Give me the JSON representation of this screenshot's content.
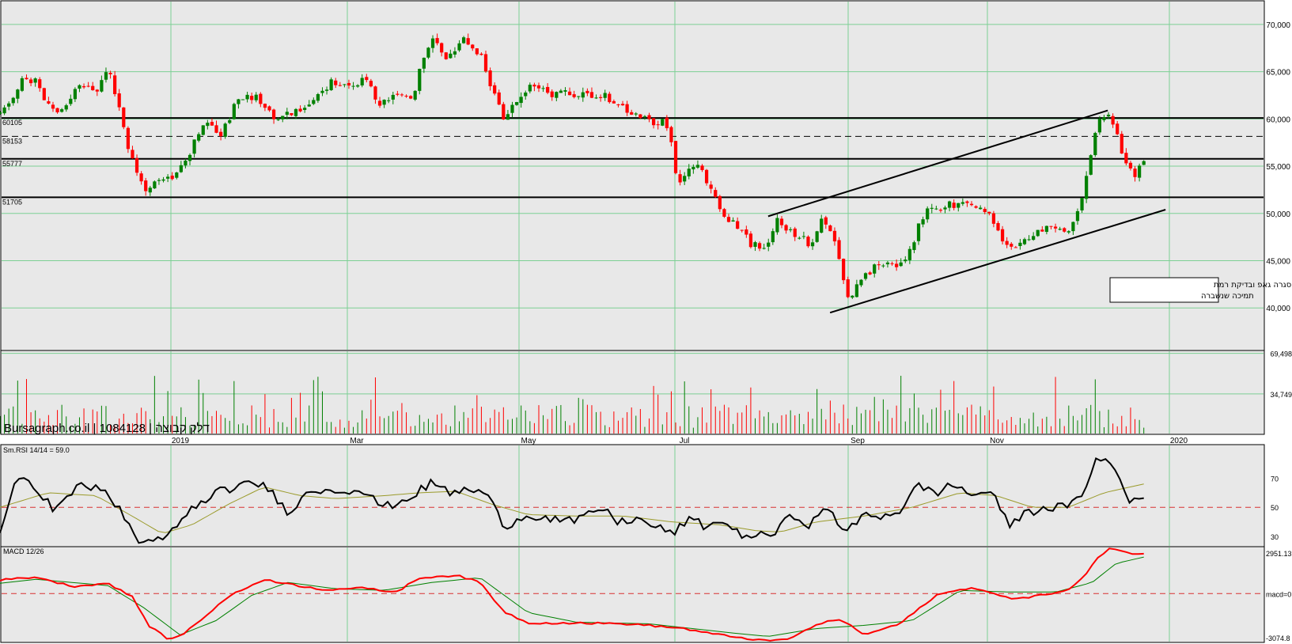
{
  "brand": "Bursagraph.co.il | 1084128 | דלק קבוצה",
  "chart_data": {
    "type": "candlestick",
    "title": "",
    "xlabel": "",
    "ylabel": "",
    "x_ticks": [
      "2019",
      "Mar",
      "May",
      "Jul",
      "Sep",
      "Nov",
      "2020"
    ],
    "price": {
      "ylim": [
        35500,
        72500
      ],
      "y_ticks": [
        "70,000",
        "65,000",
        "60,000",
        "55,000",
        "50,000",
        "45,000",
        "40,000"
      ],
      "y_tick_values": [
        70000,
        65000,
        60000,
        55000,
        50000,
        45000,
        40000
      ],
      "horizontal_levels": [
        {
          "label": "60105",
          "value": 60105,
          "style": "solid"
        },
        {
          "label": "58153",
          "value": 58153,
          "style": "dashed"
        },
        {
          "label": "55777",
          "value": 55777,
          "style": "solid"
        },
        {
          "label": "51705",
          "value": 51705,
          "style": "solid"
        }
      ],
      "trendlines": [
        {
          "from": [
            0.64,
            49700
          ],
          "to": [
            0.923,
            60900
          ]
        },
        {
          "from": [
            0.6916,
            39500
          ],
          "to": [
            0.9711,
            50400
          ]
        }
      ],
      "annotation": "סגרה גאפ ובדיקת רמת\nתמיכה שנשברה",
      "anchors": [
        [
          0.0,
          60500
        ],
        [
          0.01,
          61500
        ],
        [
          0.02,
          64500
        ],
        [
          0.03,
          63800
        ],
        [
          0.045,
          60500
        ],
        [
          0.058,
          62000
        ],
        [
          0.068,
          63800
        ],
        [
          0.08,
          62800
        ],
        [
          0.09,
          65500
        ],
        [
          0.1,
          60500
        ],
        [
          0.11,
          55500
        ],
        [
          0.122,
          52500
        ],
        [
          0.135,
          54000
        ],
        [
          0.145,
          53800
        ],
        [
          0.158,
          56500
        ],
        [
          0.17,
          59800
        ],
        [
          0.185,
          58500
        ],
        [
          0.2,
          62500
        ],
        [
          0.215,
          62200
        ],
        [
          0.23,
          60000
        ],
        [
          0.245,
          60500
        ],
        [
          0.26,
          62000
        ],
        [
          0.275,
          63800
        ],
        [
          0.29,
          63200
        ],
        [
          0.305,
          64500
        ],
        [
          0.315,
          61500
        ],
        [
          0.325,
          62300
        ],
        [
          0.335,
          62800
        ],
        [
          0.345,
          62200
        ],
        [
          0.352,
          66500
        ],
        [
          0.362,
          68600
        ],
        [
          0.372,
          66000
        ],
        [
          0.385,
          68700
        ],
        [
          0.4,
          67000
        ],
        [
          0.412,
          62500
        ],
        [
          0.42,
          59500
        ],
        [
          0.432,
          62500
        ],
        [
          0.445,
          63800
        ],
        [
          0.46,
          62500
        ],
        [
          0.475,
          62800
        ],
        [
          0.49,
          62500
        ],
        [
          0.505,
          62300
        ],
        [
          0.52,
          61200
        ],
        [
          0.535,
          60000
        ],
        [
          0.545,
          59300
        ],
        [
          0.553,
          60500
        ],
        [
          0.558,
          58500
        ],
        [
          0.565,
          52500
        ],
        [
          0.572,
          54500
        ],
        [
          0.58,
          55500
        ],
        [
          0.59,
          53000
        ],
        [
          0.605,
          49500
        ],
        [
          0.615,
          48500
        ],
        [
          0.625,
          46800
        ],
        [
          0.638,
          46200
        ],
        [
          0.648,
          49500
        ],
        [
          0.66,
          47800
        ],
        [
          0.675,
          46800
        ],
        [
          0.685,
          49500
        ],
        [
          0.697,
          46500
        ],
        [
          0.707,
          41000
        ],
        [
          0.717,
          43200
        ],
        [
          0.728,
          44200
        ],
        [
          0.74,
          44800
        ],
        [
          0.752,
          44500
        ],
        [
          0.762,
          47500
        ],
        [
          0.772,
          50500
        ],
        [
          0.785,
          50600
        ],
        [
          0.795,
          51000
        ],
        [
          0.805,
          50800
        ],
        [
          0.815,
          50500
        ],
        [
          0.83,
          49000
        ],
        [
          0.84,
          46000
        ],
        [
          0.85,
          47200
        ],
        [
          0.86,
          47700
        ],
        [
          0.87,
          48500
        ],
        [
          0.88,
          48700
        ],
        [
          0.89,
          48200
        ],
        [
          0.9,
          51000
        ],
        [
          0.908,
          55500
        ],
        [
          0.915,
          59500
        ],
        [
          0.922,
          60500
        ],
        [
          0.93,
          58500
        ],
        [
          0.938,
          55500
        ],
        [
          0.946,
          54000
        ],
        [
          0.953,
          55300
        ]
      ]
    },
    "volume": {
      "y_ticks": [
        "69,498",
        "34,749"
      ],
      "y_tick_values": [
        69498,
        34749
      ],
      "ymax": 72000
    },
    "rsi": {
      "label": "Sm.RSI 14/14 = 59.0",
      "ylim": [
        23,
        93
      ],
      "y_ticks": [
        "70",
        "50",
        "30"
      ],
      "y_tick_values": [
        70,
        50,
        30
      ],
      "reference_level": 50,
      "anchors": [
        [
          0.0,
          32
        ],
        [
          0.012,
          69
        ],
        [
          0.025,
          69
        ],
        [
          0.045,
          48
        ],
        [
          0.065,
          64
        ],
        [
          0.085,
          64
        ],
        [
          0.1,
          48
        ],
        [
          0.115,
          27
        ],
        [
          0.13,
          26
        ],
        [
          0.145,
          34
        ],
        [
          0.16,
          50
        ],
        [
          0.18,
          60
        ],
        [
          0.2,
          65
        ],
        [
          0.22,
          66
        ],
        [
          0.24,
          47
        ],
        [
          0.26,
          62
        ],
        [
          0.28,
          62
        ],
        [
          0.3,
          62
        ],
        [
          0.32,
          50
        ],
        [
          0.34,
          56
        ],
        [
          0.36,
          67
        ],
        [
          0.375,
          60
        ],
        [
          0.39,
          62
        ],
        [
          0.405,
          60
        ],
        [
          0.42,
          37
        ],
        [
          0.44,
          45
        ],
        [
          0.46,
          42
        ],
        [
          0.48,
          40
        ],
        [
          0.5,
          50
        ],
        [
          0.515,
          40
        ],
        [
          0.53,
          42
        ],
        [
          0.545,
          37
        ],
        [
          0.56,
          32
        ],
        [
          0.575,
          42
        ],
        [
          0.59,
          36
        ],
        [
          0.6,
          42
        ],
        [
          0.615,
          32
        ],
        [
          0.63,
          30
        ],
        [
          0.645,
          32
        ],
        [
          0.66,
          45
        ],
        [
          0.675,
          38
        ],
        [
          0.69,
          50
        ],
        [
          0.705,
          32
        ],
        [
          0.72,
          45
        ],
        [
          0.735,
          44
        ],
        [
          0.75,
          48
        ],
        [
          0.765,
          65
        ],
        [
          0.78,
          60
        ],
        [
          0.795,
          66
        ],
        [
          0.81,
          58
        ],
        [
          0.825,
          62
        ],
        [
          0.84,
          38
        ],
        [
          0.855,
          46
        ],
        [
          0.87,
          50
        ],
        [
          0.885,
          50
        ],
        [
          0.9,
          55
        ],
        [
          0.912,
          82
        ],
        [
          0.922,
          82
        ],
        [
          0.932,
          73
        ],
        [
          0.94,
          53
        ],
        [
          0.953,
          59
        ]
      ],
      "smooth_anchors": [
        [
          0.0,
          50
        ],
        [
          0.04,
          60
        ],
        [
          0.08,
          58
        ],
        [
          0.11,
          44
        ],
        [
          0.135,
          32
        ],
        [
          0.16,
          38
        ],
        [
          0.19,
          52
        ],
        [
          0.22,
          64
        ],
        [
          0.25,
          58
        ],
        [
          0.28,
          56
        ],
        [
          0.32,
          58
        ],
        [
          0.35,
          60
        ],
        [
          0.38,
          61
        ],
        [
          0.41,
          52
        ],
        [
          0.44,
          45
        ],
        [
          0.48,
          44
        ],
        [
          0.52,
          44
        ],
        [
          0.56,
          40
        ],
        [
          0.6,
          38
        ],
        [
          0.63,
          34
        ],
        [
          0.65,
          33
        ],
        [
          0.68,
          40
        ],
        [
          0.72,
          44
        ],
        [
          0.76,
          50
        ],
        [
          0.8,
          60
        ],
        [
          0.83,
          58
        ],
        [
          0.86,
          50
        ],
        [
          0.89,
          50
        ],
        [
          0.92,
          60
        ],
        [
          0.953,
          66
        ]
      ]
    },
    "macd": {
      "label": "MACD 12/26",
      "ylim": [
        -3074.8,
        2951.13
      ],
      "y_ticks": [
        "2951.13",
        "macd=0",
        "-3074.8"
      ],
      "y_tick_values": [
        2951.13,
        0,
        -3074.8
      ],
      "reference_level": 0,
      "macd_anchors": [
        [
          0.0,
          850
        ],
        [
          0.03,
          1050
        ],
        [
          0.06,
          450
        ],
        [
          0.09,
          650
        ],
        [
          0.11,
          -200
        ],
        [
          0.125,
          -2100
        ],
        [
          0.14,
          -2850
        ],
        [
          0.15,
          -2700
        ],
        [
          0.165,
          -1800
        ],
        [
          0.19,
          -200
        ],
        [
          0.22,
          900
        ],
        [
          0.24,
          600
        ],
        [
          0.27,
          250
        ],
        [
          0.3,
          350
        ],
        [
          0.33,
          100
        ],
        [
          0.35,
          1000
        ],
        [
          0.38,
          1150
        ],
        [
          0.4,
          700
        ],
        [
          0.42,
          -1150
        ],
        [
          0.44,
          -1850
        ],
        [
          0.48,
          -1850
        ],
        [
          0.52,
          -1900
        ],
        [
          0.54,
          -2000
        ],
        [
          0.57,
          -2200
        ],
        [
          0.59,
          -2500
        ],
        [
          0.61,
          -2700
        ],
        [
          0.64,
          -3000
        ],
        [
          0.66,
          -2800
        ],
        [
          0.68,
          -1950
        ],
        [
          0.7,
          -1600
        ],
        [
          0.72,
          -2600
        ],
        [
          0.75,
          -1900
        ],
        [
          0.78,
          -100
        ],
        [
          0.81,
          400
        ],
        [
          0.84,
          -300
        ],
        [
          0.86,
          -200
        ],
        [
          0.89,
          200
        ],
        [
          0.905,
          1200
        ],
        [
          0.915,
          2300
        ],
        [
          0.925,
          2900
        ],
        [
          0.94,
          2550
        ],
        [
          0.953,
          2500
        ]
      ],
      "signal_anchors": [
        [
          0.0,
          650
        ],
        [
          0.03,
          900
        ],
        [
          0.06,
          700
        ],
        [
          0.09,
          500
        ],
        [
          0.12,
          -900
        ],
        [
          0.15,
          -2600
        ],
        [
          0.18,
          -1700
        ],
        [
          0.21,
          -100
        ],
        [
          0.24,
          700
        ],
        [
          0.28,
          300
        ],
        [
          0.32,
          200
        ],
        [
          0.36,
          700
        ],
        [
          0.4,
          1000
        ],
        [
          0.44,
          -1200
        ],
        [
          0.48,
          -1800
        ],
        [
          0.54,
          -1900
        ],
        [
          0.6,
          -2400
        ],
        [
          0.64,
          -2700
        ],
        [
          0.68,
          -2200
        ],
        [
          0.72,
          -2000
        ],
        [
          0.76,
          -1700
        ],
        [
          0.8,
          200
        ],
        [
          0.84,
          100
        ],
        [
          0.88,
          100
        ],
        [
          0.91,
          700
        ],
        [
          0.93,
          1900
        ],
        [
          0.953,
          2300
        ]
      ]
    }
  },
  "colors": {
    "up": "#008000",
    "down": "#ff0000",
    "grid": "#7ccf94",
    "panel_bg": "#e8e8e8",
    "rsi_line": "#000000",
    "rsi_smooth": "#9a9a2a",
    "macd_line": "#ff0000",
    "signal_line": "#008000",
    "reference": "#d83030"
  }
}
